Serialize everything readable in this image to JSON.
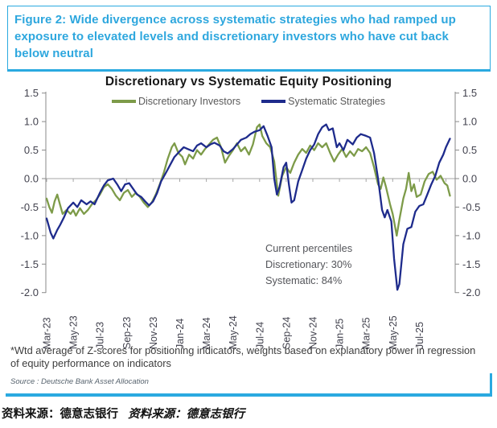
{
  "figure_header": {
    "text": "Figure 2: Wide divergence across systematic strategies who had ramped up exposure to elevated levels and discretionary investors who have cut back below neutral"
  },
  "chart": {
    "title": "Discretionary  vs Systematic Equity Positioning",
    "legend": [
      {
        "label": "Discretionary Investors",
        "color": "#7d9b49"
      },
      {
        "label": "Systematic Strategies",
        "color": "#1e2b8c"
      }
    ],
    "annotation": {
      "title": "Current percentiles",
      "discretionary": "Discretionary: 30%",
      "systematic": "Systematic: 84%"
    }
  },
  "chart_data": {
    "type": "line",
    "title": "Discretionary vs Systematic Equity Positioning",
    "x_axis": {
      "unit": "months since Mar-2023",
      "tick_labels": [
        "Mar-23",
        "May-23",
        "Jul-23",
        "Sep-23",
        "Nov-23",
        "Jan-24",
        "Mar-24",
        "May-24",
        "Jul-24",
        "Sep-24",
        "Nov-24",
        "Jan-25",
        "Mar-25",
        "May-25",
        "Jul-25"
      ],
      "tick_positions": [
        0,
        2,
        4,
        6,
        8,
        10,
        12,
        14,
        16,
        18,
        20,
        22,
        24,
        26,
        28
      ],
      "xlim": [
        -0.3,
        30.8
      ]
    },
    "y_axis": {
      "ticks": [
        1.5,
        1.0,
        0.5,
        0.0,
        -0.5,
        -1.0,
        -1.5,
        -2.0
      ],
      "ylim": [
        -2.0,
        1.5
      ],
      "dual_axis": true
    },
    "grid": "horizontal zero line only, with small ticks every 2 months",
    "legend_position": "top-center",
    "annotations": [
      "Current percentiles",
      "Discretionary: 30%",
      "Systematic: 84%"
    ],
    "series": [
      {
        "name": "Discretionary Investors",
        "color": "#7d9b49",
        "points": [
          [
            0,
            -0.35
          ],
          [
            0.2,
            -0.5
          ],
          [
            0.4,
            -0.6
          ],
          [
            0.6,
            -0.4
          ],
          [
            0.8,
            -0.28
          ],
          [
            1,
            -0.45
          ],
          [
            1.2,
            -0.62
          ],
          [
            1.5,
            -0.55
          ],
          [
            1.8,
            -0.62
          ],
          [
            2,
            -0.55
          ],
          [
            2.2,
            -0.65
          ],
          [
            2.5,
            -0.52
          ],
          [
            2.8,
            -0.62
          ],
          [
            3.1,
            -0.55
          ],
          [
            3.4,
            -0.45
          ],
          [
            3.7,
            -0.38
          ],
          [
            4,
            -0.28
          ],
          [
            4.3,
            -0.15
          ],
          [
            4.6,
            -0.1
          ],
          [
            4.9,
            -0.18
          ],
          [
            5.2,
            -0.3
          ],
          [
            5.5,
            -0.38
          ],
          [
            5.8,
            -0.25
          ],
          [
            6.1,
            -0.2
          ],
          [
            6.4,
            -0.32
          ],
          [
            6.7,
            -0.25
          ],
          [
            7,
            -0.32
          ],
          [
            7.3,
            -0.42
          ],
          [
            7.6,
            -0.5
          ],
          [
            7.9,
            -0.42
          ],
          [
            8.2,
            -0.28
          ],
          [
            8.5,
            -0.1
          ],
          [
            8.8,
            0.1
          ],
          [
            9.1,
            0.35
          ],
          [
            9.4,
            0.55
          ],
          [
            9.6,
            0.62
          ],
          [
            9.9,
            0.45
          ],
          [
            10.2,
            0.38
          ],
          [
            10.4,
            0.25
          ],
          [
            10.7,
            0.42
          ],
          [
            11,
            0.35
          ],
          [
            11.3,
            0.5
          ],
          [
            11.6,
            0.42
          ],
          [
            11.9,
            0.52
          ],
          [
            12.2,
            0.6
          ],
          [
            12.5,
            0.68
          ],
          [
            12.8,
            0.72
          ],
          [
            13.1,
            0.55
          ],
          [
            13.4,
            0.28
          ],
          [
            13.7,
            0.4
          ],
          [
            14,
            0.5
          ],
          [
            14.3,
            0.62
          ],
          [
            14.6,
            0.48
          ],
          [
            14.9,
            0.55
          ],
          [
            15.2,
            0.42
          ],
          [
            15.5,
            0.6
          ],
          [
            15.8,
            0.9
          ],
          [
            16,
            0.95
          ],
          [
            16.2,
            0.75
          ],
          [
            16.5,
            0.62
          ],
          [
            16.8,
            0.55
          ],
          [
            17.1,
            0.3
          ],
          [
            17.4,
            -0.3
          ],
          [
            17.7,
            0.05
          ],
          [
            18,
            0.2
          ],
          [
            18.3,
            0.1
          ],
          [
            18.6,
            0.28
          ],
          [
            18.9,
            0.42
          ],
          [
            19.2,
            0.52
          ],
          [
            19.5,
            0.45
          ],
          [
            19.8,
            0.58
          ],
          [
            20.1,
            0.5
          ],
          [
            20.4,
            0.62
          ],
          [
            20.7,
            0.55
          ],
          [
            21,
            0.62
          ],
          [
            21.3,
            0.45
          ],
          [
            21.6,
            0.3
          ],
          [
            21.9,
            0.42
          ],
          [
            22.2,
            0.52
          ],
          [
            22.5,
            0.38
          ],
          [
            22.8,
            0.48
          ],
          [
            23.1,
            0.4
          ],
          [
            23.4,
            0.52
          ],
          [
            23.7,
            0.48
          ],
          [
            24,
            0.55
          ],
          [
            24.3,
            0.45
          ],
          [
            24.6,
            0.2
          ],
          [
            24.9,
            -0.1
          ],
          [
            25.1,
            -0.18
          ],
          [
            25.3,
            0.02
          ],
          [
            25.5,
            -0.15
          ],
          [
            25.8,
            -0.45
          ],
          [
            26,
            -0.62
          ],
          [
            26.3,
            -1
          ],
          [
            26.5,
            -0.72
          ],
          [
            26.8,
            -0.35
          ],
          [
            27,
            -0.18
          ],
          [
            27.2,
            0.1
          ],
          [
            27.4,
            -0.22
          ],
          [
            27.6,
            -0.1
          ],
          [
            27.8,
            -0.32
          ],
          [
            28.1,
            -0.28
          ],
          [
            28.4,
            -0.05
          ],
          [
            28.7,
            0.08
          ],
          [
            29,
            0.12
          ],
          [
            29.3,
            -0.02
          ],
          [
            29.6,
            0.05
          ],
          [
            29.9,
            -0.08
          ],
          [
            30.1,
            -0.12
          ],
          [
            30.3,
            -0.3
          ]
        ]
      },
      {
        "name": "Systematic Strategies",
        "color": "#1e2b8c",
        "points": [
          [
            0,
            -0.7
          ],
          [
            0.3,
            -0.95
          ],
          [
            0.5,
            -1.05
          ],
          [
            0.8,
            -0.9
          ],
          [
            1,
            -0.82
          ],
          [
            1.3,
            -0.68
          ],
          [
            1.6,
            -0.52
          ],
          [
            2,
            -0.42
          ],
          [
            2.3,
            -0.5
          ],
          [
            2.6,
            -0.38
          ],
          [
            3,
            -0.45
          ],
          [
            3.3,
            -0.4
          ],
          [
            3.6,
            -0.45
          ],
          [
            4,
            -0.25
          ],
          [
            4.3,
            -0.12
          ],
          [
            4.6,
            -0.03
          ],
          [
            5,
            0
          ],
          [
            5.3,
            -0.1
          ],
          [
            5.6,
            -0.22
          ],
          [
            5.9,
            -0.1
          ],
          [
            6.2,
            -0.08
          ],
          [
            6.5,
            -0.18
          ],
          [
            6.8,
            -0.28
          ],
          [
            7.1,
            -0.32
          ],
          [
            7.4,
            -0.4
          ],
          [
            7.7,
            -0.47
          ],
          [
            8,
            -0.4
          ],
          [
            8.3,
            -0.25
          ],
          [
            8.6,
            -0.05
          ],
          [
            9,
            0.12
          ],
          [
            9.3,
            0.25
          ],
          [
            9.6,
            0.38
          ],
          [
            10,
            0.48
          ],
          [
            10.3,
            0.55
          ],
          [
            10.6,
            0.52
          ],
          [
            11,
            0.48
          ],
          [
            11.3,
            0.58
          ],
          [
            11.6,
            0.62
          ],
          [
            12,
            0.55
          ],
          [
            12.3,
            0.6
          ],
          [
            12.6,
            0.63
          ],
          [
            13,
            0.58
          ],
          [
            13.3,
            0.48
          ],
          [
            13.6,
            0.44
          ],
          [
            14,
            0.52
          ],
          [
            14.3,
            0.6
          ],
          [
            14.6,
            0.68
          ],
          [
            15,
            0.72
          ],
          [
            15.3,
            0.78
          ],
          [
            15.6,
            0.82
          ],
          [
            16,
            0.85
          ],
          [
            16.3,
            0.92
          ],
          [
            16.6,
            0.75
          ],
          [
            16.9,
            0.55
          ],
          [
            17.1,
            0
          ],
          [
            17.3,
            -0.28
          ],
          [
            17.5,
            -0.15
          ],
          [
            17.8,
            0.2
          ],
          [
            18,
            0.28
          ],
          [
            18.2,
            -0.1
          ],
          [
            18.4,
            -0.42
          ],
          [
            18.6,
            -0.38
          ],
          [
            18.9,
            -0.05
          ],
          [
            19.2,
            0.15
          ],
          [
            19.5,
            0.35
          ],
          [
            19.8,
            0.5
          ],
          [
            20.1,
            0.6
          ],
          [
            20.4,
            0.78
          ],
          [
            20.7,
            0.9
          ],
          [
            21,
            0.95
          ],
          [
            21.2,
            0.85
          ],
          [
            21.5,
            0.88
          ],
          [
            21.8,
            0.55
          ],
          [
            22,
            0.62
          ],
          [
            22.3,
            0.5
          ],
          [
            22.6,
            0.68
          ],
          [
            23,
            0.6
          ],
          [
            23.3,
            0.72
          ],
          [
            23.6,
            0.78
          ],
          [
            24,
            0.75
          ],
          [
            24.3,
            0.72
          ],
          [
            24.6,
            0.45
          ],
          [
            24.9,
            0
          ],
          [
            25.2,
            -0.55
          ],
          [
            25.4,
            -0.68
          ],
          [
            25.6,
            -0.55
          ],
          [
            25.9,
            -0.75
          ],
          [
            26.1,
            -1.4
          ],
          [
            26.35,
            -1.95
          ],
          [
            26.5,
            -1.85
          ],
          [
            26.8,
            -1.15
          ],
          [
            27.1,
            -0.88
          ],
          [
            27.4,
            -0.85
          ],
          [
            27.7,
            -0.58
          ],
          [
            28,
            -0.48
          ],
          [
            28.3,
            -0.45
          ],
          [
            28.6,
            -0.28
          ],
          [
            28.9,
            -0.1
          ],
          [
            29.2,
            0.05
          ],
          [
            29.5,
            0.28
          ],
          [
            29.8,
            0.42
          ],
          [
            30,
            0.55
          ],
          [
            30.3,
            0.7
          ]
        ]
      }
    ]
  },
  "footnote": "*Wtd average of Z-scores for positioning indicators, weights based on explanatory power in regression of equity performance on indicators",
  "source_line": "Source : Deutsche Bank Asset Allocation",
  "caption": {
    "bold_text": "资料来源：德意志银行",
    "italic_text": "资料来源：德意志银行"
  },
  "colors": {
    "accent_blue": "#2aa9e0",
    "header_text": "#2ea7de",
    "discretionary_line": "#7d9b49",
    "systematic_line": "#1e2b8c",
    "axis_text": "#42424e",
    "legend_text": "#595959",
    "zero_line": "#a6a6a6"
  }
}
